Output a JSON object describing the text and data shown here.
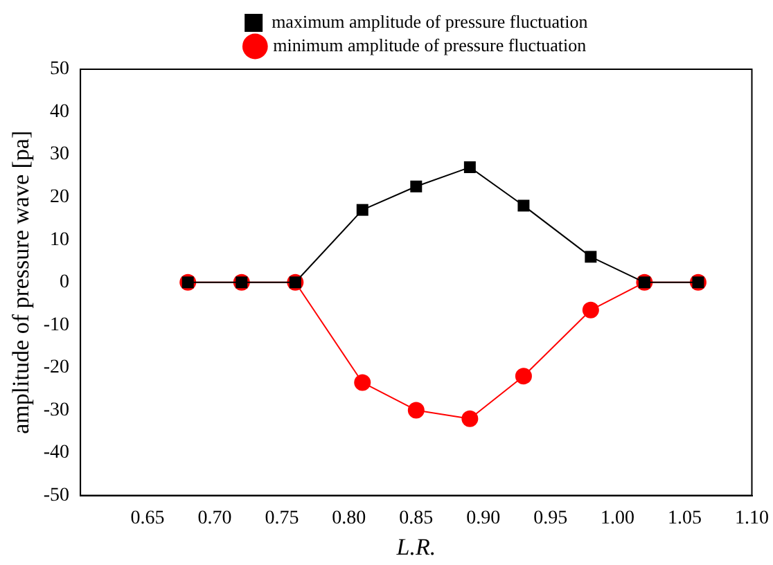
{
  "chart_data": {
    "type": "line",
    "xlabel": "L.R.",
    "ylabel": "amplitude of pressure wave [pa]",
    "x": [
      0.68,
      0.72,
      0.76,
      0.81,
      0.85,
      0.89,
      0.93,
      0.98,
      1.02,
      1.06
    ],
    "series": [
      {
        "name": "maximum amplitude of pressure fluctuation",
        "color": "#000000",
        "marker": "square",
        "values": [
          0,
          0,
          0,
          17,
          22.5,
          27,
          18,
          6,
          0,
          0
        ]
      },
      {
        "name": "minimum amplitude of pressure fluctuation",
        "color": "#ff0000",
        "marker": "circle",
        "values": [
          0,
          0,
          0,
          -23.5,
          -30,
          -32,
          -22,
          -6.5,
          0,
          0
        ]
      }
    ],
    "xlim": [
      0.6,
      1.1
    ],
    "xticks": [
      0.65,
      {
        "value": 0.7,
        "label": "0.70"
      },
      0.75,
      {
        "value": 0.8,
        "label": "0.80"
      },
      0.85,
      {
        "value": 0.9,
        "label": "0.90"
      },
      0.95,
      {
        "value": 1,
        "label": "1.00"
      },
      1.05,
      {
        "value": 1.1,
        "label": "1.10"
      }
    ],
    "ylim": [
      -50,
      50
    ],
    "yticks": [
      -50,
      -40,
      -30,
      -20,
      -10,
      0,
      10,
      20,
      30,
      40,
      50
    ],
    "grid": false,
    "legend": "top",
    "line_style": "solid"
  }
}
